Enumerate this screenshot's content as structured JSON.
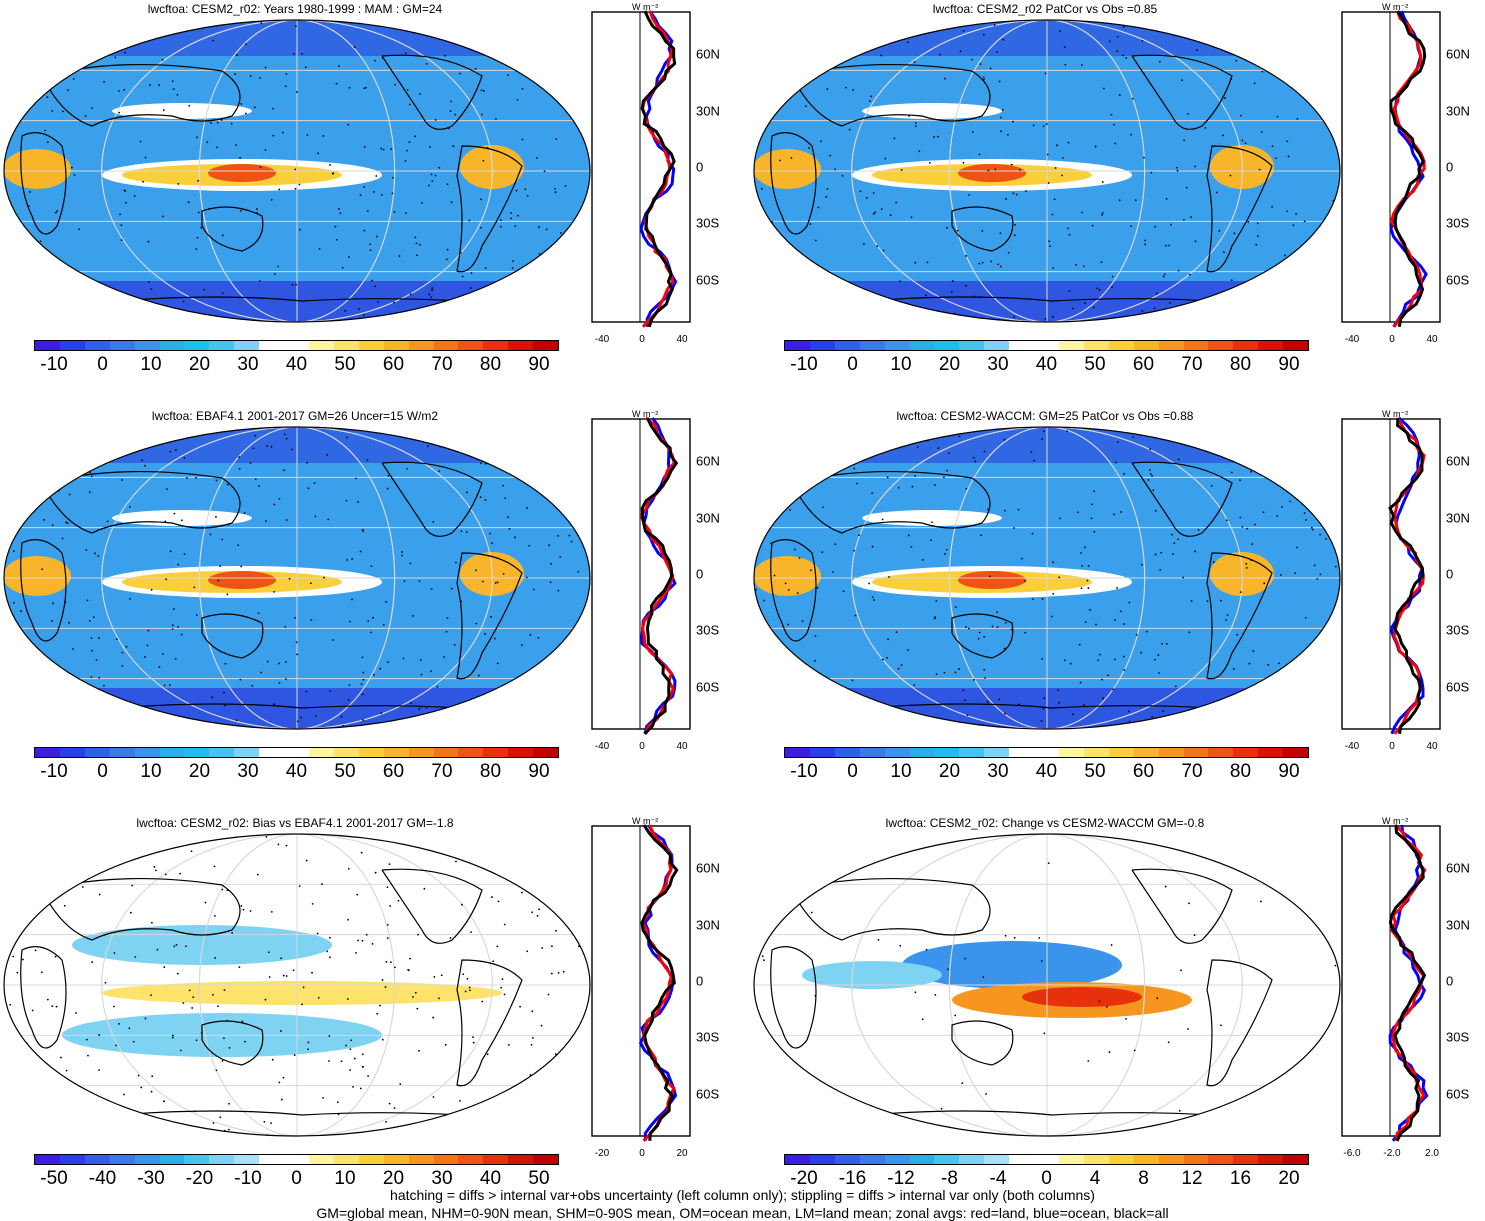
{
  "colors": {
    "abs_scale": [
      "#3a1fe0",
      "#2a3fe8",
      "#3060e8",
      "#3b78ea",
      "#3a94ec",
      "#2aaee8",
      "#1fbcee",
      "#47c3ef",
      "#7ed2f2",
      "#ffffff",
      "#ffffff",
      "#fff4a0",
      "#fde36a",
      "#fbcf3a",
      "#f9b52a",
      "#f7961e",
      "#f47418",
      "#ef5212",
      "#e7300c",
      "#d81206",
      "#c00003"
    ],
    "bias_scale": [
      "#3a1fe0",
      "#2a3fe8",
      "#3060e8",
      "#3b78ea",
      "#3a94ec",
      "#2aaee8",
      "#47c3ef",
      "#7ed2f2",
      "#a8e0f5",
      "#ffffff",
      "#ffffff",
      "#fff4a0",
      "#fde36a",
      "#fbcf3a",
      "#f9b52a",
      "#f7961e",
      "#f47418",
      "#ef5212",
      "#e7300c",
      "#d81206",
      "#c00003"
    ],
    "zonal_land": "#ff0000",
    "zonal_ocean": "#0000ff",
    "zonal_all": "#000000"
  },
  "panels": [
    {
      "id": "model",
      "title": "lwcftoa: CESM2_r02: Years 1980-1999 : MAM : GM=24",
      "scale": "abs",
      "colorbar_labels": [
        "-10",
        "0",
        "10",
        "20",
        "30",
        "40",
        "50",
        "60",
        "70",
        "80",
        "90"
      ],
      "zonal_units": "W m⁻²",
      "zonal_lat_labels": [
        "60N",
        "30N",
        "0",
        "30S",
        "60S"
      ],
      "zonal_x_labels": [
        "-40",
        "0",
        "40"
      ]
    },
    {
      "id": "model-patcor",
      "title": "lwcftoa: CESM2_r02 PatCor vs Obs =0.85",
      "scale": "abs",
      "colorbar_labels": [
        "-10",
        "0",
        "10",
        "20",
        "30",
        "40",
        "50",
        "60",
        "70",
        "80",
        "90"
      ],
      "zonal_units": "W m⁻²",
      "zonal_lat_labels": [
        "60N",
        "30N",
        "0",
        "30S",
        "60S"
      ],
      "zonal_x_labels": [
        "-40",
        "0",
        "40"
      ]
    },
    {
      "id": "obs",
      "title": "lwcftoa: EBAF4.1 2001-2017 GM=26 Uncer=15 W/m2",
      "scale": "abs",
      "colorbar_labels": [
        "-10",
        "0",
        "10",
        "20",
        "30",
        "40",
        "50",
        "60",
        "70",
        "80",
        "90"
      ],
      "zonal_units": "W m⁻²",
      "zonal_lat_labels": [
        "60N",
        "30N",
        "0",
        "30S",
        "60S"
      ],
      "zonal_x_labels": [
        "-40",
        "0",
        "40"
      ]
    },
    {
      "id": "waccm",
      "title": "lwcftoa: CESM2-WACCM: GM=25 PatCor vs Obs =0.88",
      "scale": "abs",
      "colorbar_labels": [
        "-10",
        "0",
        "10",
        "20",
        "30",
        "40",
        "50",
        "60",
        "70",
        "80",
        "90"
      ],
      "zonal_units": "W m⁻²",
      "zonal_lat_labels": [
        "60N",
        "30N",
        "0",
        "30S",
        "60S"
      ],
      "zonal_x_labels": [
        "-40",
        "0",
        "40"
      ]
    },
    {
      "id": "bias",
      "title": "lwcftoa: CESM2_r02: Bias vs EBAF4.1 2001-2017 GM=-1.8",
      "scale": "bias",
      "colorbar_labels": [
        "-50",
        "-40",
        "-30",
        "-20",
        "-10",
        "0",
        "10",
        "20",
        "30",
        "40",
        "50"
      ],
      "zonal_units": "W m⁻²",
      "zonal_lat_labels": [
        "60N",
        "30N",
        "0",
        "30S",
        "60S"
      ],
      "zonal_x_labels": [
        "-20",
        "0",
        "20"
      ]
    },
    {
      "id": "change",
      "title": "lwcftoa: CESM2_r02: Change vs CESM2-WACCM GM=-0.8",
      "scale": "bias",
      "colorbar_labels": [
        "-20",
        "-16",
        "-12",
        "-8",
        "-4",
        "0",
        "4",
        "8",
        "12",
        "16",
        "20"
      ],
      "zonal_units": "W m⁻²",
      "zonal_lat_labels": [
        "60N",
        "30N",
        "0",
        "30S",
        "60S"
      ],
      "zonal_x_labels": [
        "-6.0",
        "-2.0",
        "2.0"
      ]
    }
  ],
  "footer": {
    "line1": "hatching = diffs > internal var+obs uncertainty (left column only); stippling = diffs > internal var only (both columns)",
    "line2": "GM=global mean, NHM=0-90N mean, SHM=0-90S mean, OM=ocean mean, LM=land mean; zonal avgs: red=land, blue=ocean, black=all"
  }
}
